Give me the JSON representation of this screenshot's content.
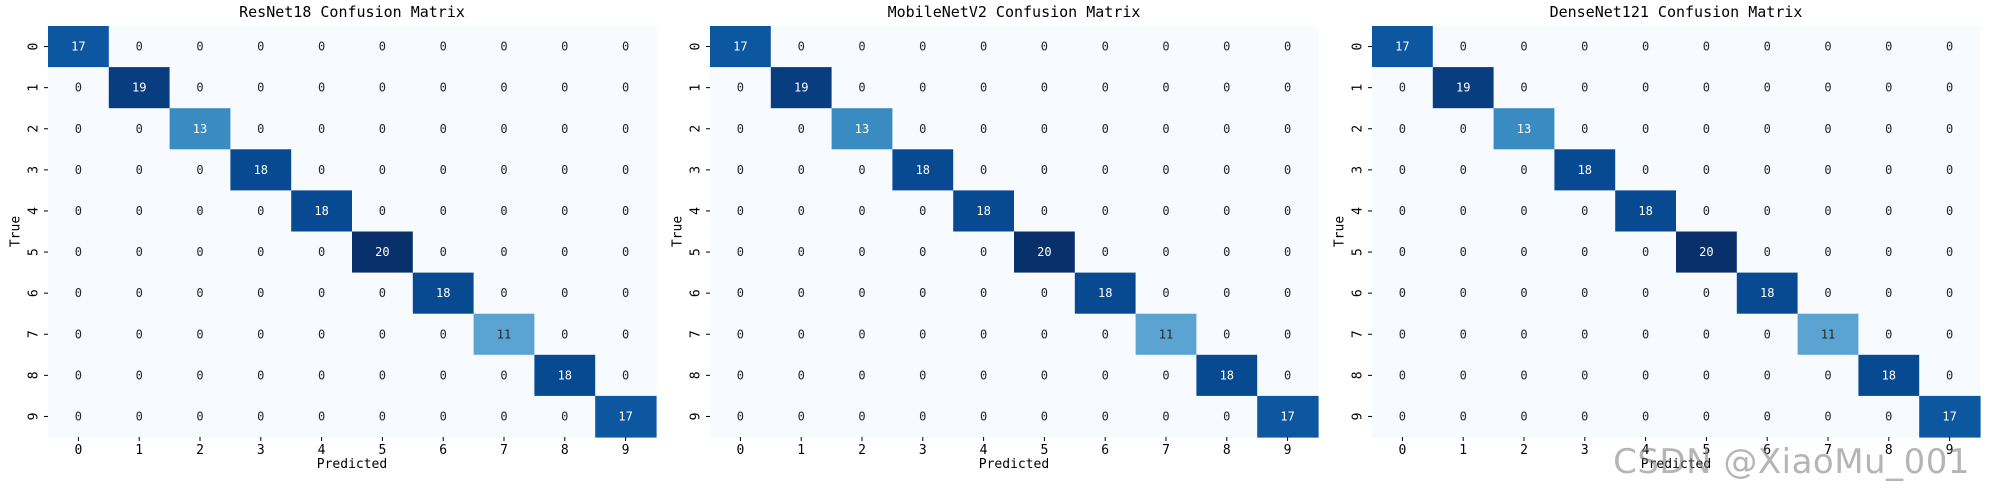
{
  "watermark": "CSDN @XiaoMu_001",
  "colors": {
    "colormap": "Blues",
    "low": "#f7fbff",
    "high": "#08306b"
  },
  "chart_data": [
    {
      "type": "heatmap",
      "title": "ResNet18 Confusion Matrix",
      "xlabel": "Predicted",
      "ylabel": "True",
      "x_labels": [
        "0",
        "1",
        "2",
        "3",
        "4",
        "5",
        "6",
        "7",
        "8",
        "9"
      ],
      "y_labels": [
        "0",
        "1",
        "2",
        "3",
        "4",
        "5",
        "6",
        "7",
        "8",
        "9"
      ],
      "matrix": [
        [
          17,
          0,
          0,
          0,
          0,
          0,
          0,
          0,
          0,
          0
        ],
        [
          0,
          19,
          0,
          0,
          0,
          0,
          0,
          0,
          0,
          0
        ],
        [
          0,
          0,
          13,
          0,
          0,
          0,
          0,
          0,
          0,
          0
        ],
        [
          0,
          0,
          0,
          18,
          0,
          0,
          0,
          0,
          0,
          0
        ],
        [
          0,
          0,
          0,
          0,
          18,
          0,
          0,
          0,
          0,
          0
        ],
        [
          0,
          0,
          0,
          0,
          0,
          20,
          0,
          0,
          0,
          0
        ],
        [
          0,
          0,
          0,
          0,
          0,
          0,
          18,
          0,
          0,
          0
        ],
        [
          0,
          0,
          0,
          0,
          0,
          0,
          0,
          11,
          0,
          0
        ],
        [
          0,
          0,
          0,
          0,
          0,
          0,
          0,
          0,
          18,
          0
        ],
        [
          0,
          0,
          0,
          0,
          0,
          0,
          0,
          0,
          0,
          17
        ]
      ]
    },
    {
      "type": "heatmap",
      "title": "MobileNetV2 Confusion Matrix",
      "xlabel": "Predicted",
      "ylabel": "True",
      "x_labels": [
        "0",
        "1",
        "2",
        "3",
        "4",
        "5",
        "6",
        "7",
        "8",
        "9"
      ],
      "y_labels": [
        "0",
        "1",
        "2",
        "3",
        "4",
        "5",
        "6",
        "7",
        "8",
        "9"
      ],
      "matrix": [
        [
          17,
          0,
          0,
          0,
          0,
          0,
          0,
          0,
          0,
          0
        ],
        [
          0,
          19,
          0,
          0,
          0,
          0,
          0,
          0,
          0,
          0
        ],
        [
          0,
          0,
          13,
          0,
          0,
          0,
          0,
          0,
          0,
          0
        ],
        [
          0,
          0,
          0,
          18,
          0,
          0,
          0,
          0,
          0,
          0
        ],
        [
          0,
          0,
          0,
          0,
          18,
          0,
          0,
          0,
          0,
          0
        ],
        [
          0,
          0,
          0,
          0,
          0,
          20,
          0,
          0,
          0,
          0
        ],
        [
          0,
          0,
          0,
          0,
          0,
          0,
          18,
          0,
          0,
          0
        ],
        [
          0,
          0,
          0,
          0,
          0,
          0,
          0,
          11,
          0,
          0
        ],
        [
          0,
          0,
          0,
          0,
          0,
          0,
          0,
          0,
          18,
          0
        ],
        [
          0,
          0,
          0,
          0,
          0,
          0,
          0,
          0,
          0,
          17
        ]
      ]
    },
    {
      "type": "heatmap",
      "title": "DenseNet121 Confusion Matrix",
      "xlabel": "Predicted",
      "ylabel": "True",
      "x_labels": [
        "0",
        "1",
        "2",
        "3",
        "4",
        "5",
        "6",
        "7",
        "8",
        "9"
      ],
      "y_labels": [
        "0",
        "1",
        "2",
        "3",
        "4",
        "5",
        "6",
        "7",
        "8",
        "9"
      ],
      "matrix": [
        [
          17,
          0,
          0,
          0,
          0,
          0,
          0,
          0,
          0,
          0
        ],
        [
          0,
          19,
          0,
          0,
          0,
          0,
          0,
          0,
          0,
          0
        ],
        [
          0,
          0,
          13,
          0,
          0,
          0,
          0,
          0,
          0,
          0
        ],
        [
          0,
          0,
          0,
          18,
          0,
          0,
          0,
          0,
          0,
          0
        ],
        [
          0,
          0,
          0,
          0,
          18,
          0,
          0,
          0,
          0,
          0
        ],
        [
          0,
          0,
          0,
          0,
          0,
          20,
          0,
          0,
          0,
          0
        ],
        [
          0,
          0,
          0,
          0,
          0,
          0,
          18,
          0,
          0,
          0
        ],
        [
          0,
          0,
          0,
          0,
          0,
          0,
          0,
          11,
          0,
          0
        ],
        [
          0,
          0,
          0,
          0,
          0,
          0,
          0,
          0,
          18,
          0
        ],
        [
          0,
          0,
          0,
          0,
          0,
          0,
          0,
          0,
          0,
          17
        ]
      ]
    }
  ]
}
